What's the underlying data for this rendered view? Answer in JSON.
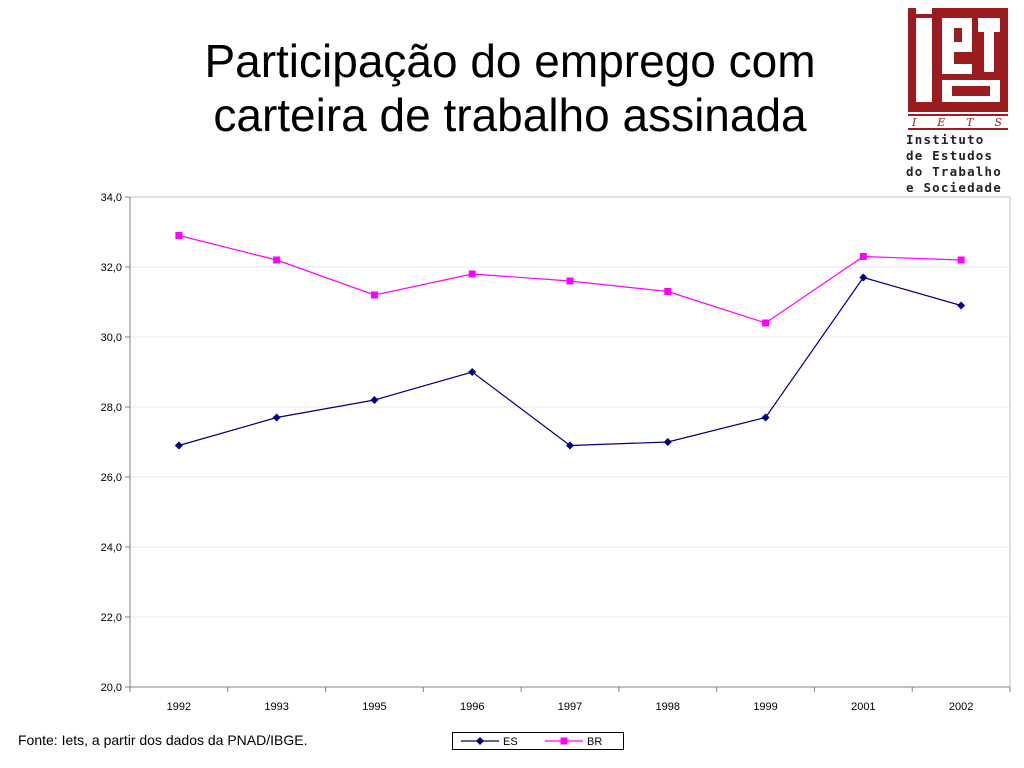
{
  "slide": {
    "title_line1": "Participação do emprego com",
    "title_line2": "carteira de trabalho assinada",
    "footer": "Fonte: Iets, a partir dos dados da PNAD/IBGE."
  },
  "logo": {
    "mark_text": "iets",
    "acronym": [
      "I",
      "E",
      "T",
      "S"
    ],
    "name_lines": [
      "Instituto",
      "de Estudos",
      "do Trabalho",
      "e Sociedade"
    ],
    "color": "#9b1b1f"
  },
  "chart_data": {
    "type": "line",
    "title": "",
    "xlabel": "",
    "ylabel": "",
    "categories": [
      "1992",
      "1993",
      "1995",
      "1996",
      "1997",
      "1998",
      "1999",
      "2001",
      "2002"
    ],
    "series": [
      {
        "name": "ES",
        "color": "#000080",
        "marker": "diamond",
        "values": [
          26.9,
          27.7,
          28.2,
          29.0,
          26.9,
          27.0,
          27.7,
          31.7,
          30.9
        ]
      },
      {
        "name": "BR",
        "color": "#ff00ff",
        "marker": "square",
        "values": [
          32.9,
          32.2,
          31.2,
          31.8,
          31.6,
          31.3,
          30.4,
          32.3,
          32.2
        ]
      }
    ],
    "ylim": [
      20.0,
      34.0
    ],
    "yticks": [
      "20,0",
      "22,0",
      "24,0",
      "26,0",
      "28,0",
      "30,0",
      "32,0",
      "34,0"
    ],
    "grid": true,
    "legend_position": "bottom"
  }
}
